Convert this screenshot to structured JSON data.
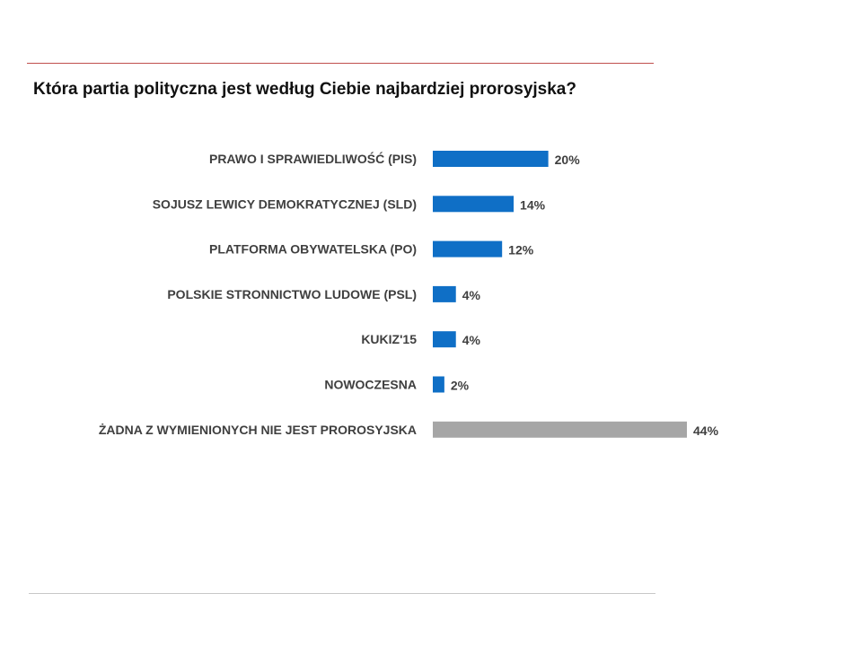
{
  "chart_data": {
    "type": "bar",
    "orientation": "horizontal",
    "title": "Która partia polityczna jest według Ciebie najbardziej prorosyjska?",
    "categories": [
      "PRAWO I SPRAWIEDLIWOŚĆ (PIS)",
      "SOJUSZ LEWICY DEMOKRATYCZNEJ (SLD)",
      "PLATFORMA OBYWATELSKA (PO)",
      "POLSKIE STRONNICTWO LUDOWE (PSL)",
      "KUKIZ'15",
      "NOWOCZESNA",
      "ŻADNA Z WYMIENIONYCH NIE JEST PROROSYJSKA"
    ],
    "values": [
      20,
      14,
      12,
      4,
      4,
      2,
      44
    ],
    "value_labels": [
      "20%",
      "14%",
      "12%",
      "4%",
      "4%",
      "2%",
      "44%"
    ],
    "colors": [
      "#0f6fc6",
      "#0f6fc6",
      "#0f6fc6",
      "#0f6fc6",
      "#0f6fc6",
      "#0f6fc6",
      "#a6a6a6"
    ],
    "xlim": [
      0,
      44
    ],
    "grid": false,
    "legend": "none"
  }
}
